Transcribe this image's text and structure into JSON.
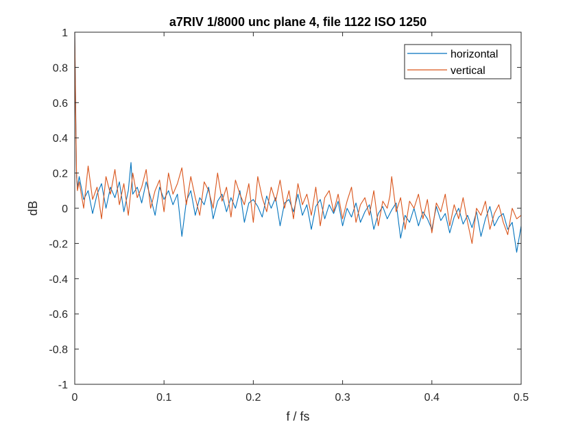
{
  "chart_data": {
    "type": "line",
    "title": "a7RIV 1/8000 unc plane 4, file 1122 ISO 1250",
    "xlabel": "f / fs",
    "ylabel": "dB",
    "xlim": [
      0,
      0.5
    ],
    "ylim": [
      -1,
      1
    ],
    "xticks": [
      0,
      0.1,
      0.2,
      0.3,
      0.4,
      0.5
    ],
    "xtick_labels": [
      "0",
      "0.1",
      "0.2",
      "0.3",
      "0.4",
      "0.5"
    ],
    "yticks": [
      1,
      0.8,
      0.6,
      0.4,
      0.2,
      0,
      -0.2,
      -0.4,
      -0.6,
      -0.8,
      -1
    ],
    "ytick_labels": [
      "1",
      "0.8",
      "0.6",
      "0.4",
      "0.2",
      "0",
      "-0.2",
      "-0.4",
      "-0.6",
      "-0.8",
      "-1"
    ],
    "grid": false,
    "legend_position": "top-right",
    "series": [
      {
        "name": "horizontal",
        "color": "#0072BD",
        "x": [
          0,
          0.001,
          0.002,
          0.003,
          0.005,
          0.01,
          0.015,
          0.02,
          0.025,
          0.03,
          0.035,
          0.04,
          0.045,
          0.05,
          0.055,
          0.06,
          0.063,
          0.065,
          0.07,
          0.075,
          0.08,
          0.085,
          0.09,
          0.095,
          0.1,
          0.105,
          0.11,
          0.115,
          0.12,
          0.125,
          0.13,
          0.135,
          0.14,
          0.145,
          0.15,
          0.155,
          0.16,
          0.165,
          0.17,
          0.175,
          0.18,
          0.185,
          0.19,
          0.195,
          0.2,
          0.205,
          0.21,
          0.215,
          0.22,
          0.225,
          0.23,
          0.235,
          0.24,
          0.245,
          0.25,
          0.255,
          0.26,
          0.265,
          0.27,
          0.275,
          0.28,
          0.285,
          0.29,
          0.295,
          0.3,
          0.305,
          0.31,
          0.315,
          0.32,
          0.325,
          0.33,
          0.335,
          0.34,
          0.345,
          0.35,
          0.355,
          0.36,
          0.365,
          0.37,
          0.375,
          0.38,
          0.385,
          0.39,
          0.395,
          0.4,
          0.405,
          0.41,
          0.415,
          0.42,
          0.425,
          0.43,
          0.435,
          0.44,
          0.445,
          0.45,
          0.455,
          0.46,
          0.465,
          0.47,
          0.475,
          0.48,
          0.485,
          0.49,
          0.495,
          0.5
        ],
        "values": [
          1,
          0.6,
          0.18,
          0.12,
          0.18,
          0.05,
          0.1,
          -0.03,
          0.08,
          0.14,
          0.0,
          0.12,
          0.06,
          0.15,
          -0.02,
          0.1,
          0.26,
          0.08,
          0.12,
          0.03,
          0.15,
          0.06,
          -0.04,
          0.12,
          0.05,
          0.1,
          0.02,
          0.08,
          -0.16,
          0.04,
          0.1,
          -0.04,
          0.06,
          0.02,
          0.12,
          -0.06,
          0.04,
          0.08,
          -0.02,
          0.06,
          0.0,
          0.1,
          -0.08,
          0.03,
          0.05,
          0.01,
          -0.05,
          0.07,
          0.0,
          0.06,
          -0.1,
          0.03,
          0.05,
          -0.02,
          0.08,
          -0.04,
          0.02,
          -0.12,
          0.01,
          0.05,
          -0.06,
          0.02,
          -0.03,
          0.04,
          -0.1,
          0.0,
          -0.05,
          0.03,
          -0.08,
          -0.02,
          0.02,
          -0.12,
          -0.03,
          0.01,
          -0.06,
          -0.01,
          0.03,
          -0.17,
          -0.04,
          -0.08,
          0.0,
          -0.1,
          -0.02,
          -0.06,
          -0.12,
          0.01,
          -0.07,
          -0.03,
          -0.14,
          -0.05,
          0.0,
          -0.09,
          -0.04,
          -0.11,
          -0.02,
          -0.16,
          -0.06,
          0.01,
          -0.1,
          -0.05,
          -0.03,
          -0.12,
          -0.08,
          -0.25,
          -0.1
        ]
      },
      {
        "name": "vertical",
        "color": "#D95319",
        "x": [
          0,
          0.001,
          0.002,
          0.003,
          0.005,
          0.01,
          0.015,
          0.02,
          0.025,
          0.03,
          0.035,
          0.04,
          0.045,
          0.05,
          0.055,
          0.06,
          0.065,
          0.07,
          0.075,
          0.08,
          0.085,
          0.09,
          0.095,
          0.1,
          0.105,
          0.11,
          0.115,
          0.12,
          0.125,
          0.13,
          0.135,
          0.14,
          0.145,
          0.15,
          0.155,
          0.16,
          0.165,
          0.17,
          0.175,
          0.18,
          0.185,
          0.19,
          0.195,
          0.2,
          0.205,
          0.21,
          0.215,
          0.22,
          0.225,
          0.23,
          0.235,
          0.24,
          0.245,
          0.25,
          0.255,
          0.26,
          0.265,
          0.27,
          0.275,
          0.28,
          0.285,
          0.29,
          0.295,
          0.3,
          0.305,
          0.31,
          0.315,
          0.32,
          0.325,
          0.33,
          0.335,
          0.34,
          0.345,
          0.35,
          0.353,
          0.355,
          0.36,
          0.365,
          0.37,
          0.375,
          0.38,
          0.385,
          0.39,
          0.395,
          0.4,
          0.405,
          0.41,
          0.415,
          0.42,
          0.425,
          0.43,
          0.435,
          0.44,
          0.445,
          0.45,
          0.455,
          0.46,
          0.465,
          0.47,
          0.475,
          0.48,
          0.485,
          0.49,
          0.495,
          0.5
        ],
        "values": [
          1,
          0.55,
          0.2,
          0.1,
          0.15,
          0.0,
          0.24,
          0.05,
          0.12,
          -0.06,
          0.18,
          0.08,
          0.22,
          0.02,
          0.14,
          -0.04,
          0.2,
          0.06,
          0.12,
          0.22,
          0.0,
          0.1,
          0.16,
          -0.02,
          0.2,
          0.08,
          0.14,
          0.23,
          0.02,
          0.18,
          0.06,
          -0.04,
          0.15,
          0.1,
          0.0,
          0.2,
          0.04,
          0.12,
          -0.05,
          0.16,
          0.08,
          0.02,
          0.14,
          -0.08,
          0.18,
          0.06,
          -0.02,
          0.12,
          0.04,
          0.16,
          0.0,
          0.1,
          -0.06,
          0.14,
          0.02,
          0.08,
          -0.04,
          0.12,
          -0.1,
          0.06,
          0.1,
          -0.02,
          0.08,
          -0.06,
          0.04,
          0.12,
          -0.08,
          0.02,
          0.06,
          -0.04,
          0.1,
          -0.1,
          0.04,
          0.0,
          0.07,
          0.18,
          -0.02,
          0.06,
          -0.12,
          0.04,
          0.0,
          0.08,
          -0.06,
          0.05,
          -0.14,
          0.03,
          -0.02,
          0.08,
          -0.1,
          0.02,
          -0.06,
          0.06,
          -0.08,
          -0.2,
          0.0,
          -0.04,
          0.04,
          -0.12,
          -0.03,
          0.02,
          -0.08,
          -0.15,
          0.0,
          -0.06,
          -0.04
        ]
      }
    ]
  }
}
